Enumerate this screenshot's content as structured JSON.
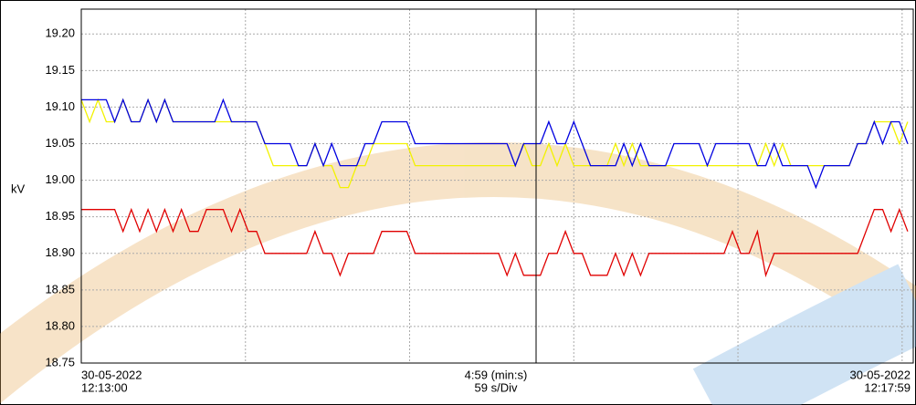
{
  "chart_data": {
    "type": "line",
    "y_label": "kV",
    "x_labels": {
      "start": [
        "30-05-2022",
        "12:13:00"
      ],
      "center": [
        "4:59 (min:s)",
        "59 s/Div"
      ],
      "end": [
        "30-05-2022",
        "12:17:59"
      ]
    },
    "xlim": [
      0,
      299
    ],
    "xticks": [
      0,
      59,
      118,
      177,
      236,
      295
    ],
    "ylim": [
      18.75,
      19.234
    ],
    "yticks": [
      18.75,
      {
        "value": 18.8,
        "label": "18.80"
      },
      18.85,
      {
        "value": 18.9,
        "label": "18.90"
      },
      18.95,
      {
        "value": 19.0,
        "label": "19.00"
      },
      19.05,
      {
        "value": 19.1,
        "label": "19.10"
      },
      19.15,
      {
        "value": 19.2,
        "label": "19.20"
      }
    ],
    "grid": true,
    "x": [
      0,
      3,
      6,
      9,
      12,
      15,
      18,
      21,
      24,
      27,
      30,
      33,
      36,
      39,
      42,
      45,
      48,
      51,
      54,
      57,
      60,
      63,
      66,
      69,
      72,
      75,
      78,
      81,
      84,
      87,
      90,
      93,
      96,
      99,
      102,
      105,
      108,
      111,
      114,
      117,
      120,
      123,
      126,
      129,
      132,
      135,
      138,
      141,
      144,
      147,
      150,
      153,
      156,
      159,
      162,
      165,
      168,
      171,
      174,
      177,
      180,
      183,
      186,
      189,
      192,
      195,
      198,
      201,
      204,
      207,
      210,
      213,
      216,
      219,
      222,
      225,
      228,
      231,
      234,
      237,
      240,
      243,
      246,
      249,
      252,
      255,
      258,
      261,
      264,
      267,
      270,
      273,
      276,
      279,
      282,
      285,
      288,
      291,
      294,
      297
    ],
    "series": [
      {
        "color": "#f2f200",
        "values": [
          19.11,
          19.08,
          19.11,
          19.08,
          19.08,
          19.11,
          19.08,
          19.08,
          19.11,
          19.08,
          19.11,
          19.08,
          19.08,
          19.08,
          19.08,
          19.08,
          19.08,
          19.08,
          19.08,
          19.08,
          19.08,
          19.08,
          19.05,
          19.02,
          19.02,
          19.02,
          19.02,
          19.02,
          19.05,
          19.02,
          19.02,
          18.99,
          18.99,
          19.02,
          19.02,
          19.05,
          19.05,
          19.05,
          19.05,
          19.05,
          19.02,
          19.02,
          19.02,
          19.02,
          19.02,
          19.02,
          19.02,
          19.02,
          19.02,
          19.02,
          19.02,
          19.02,
          19.02,
          19.05,
          19.02,
          19.02,
          19.05,
          19.02,
          19.05,
          19.02,
          19.02,
          19.02,
          19.02,
          19.02,
          19.05,
          19.02,
          19.05,
          19.02,
          19.02,
          19.02,
          19.02,
          19.02,
          19.02,
          19.02,
          19.02,
          19.02,
          19.02,
          19.02,
          19.02,
          19.02,
          19.02,
          19.02,
          19.05,
          19.02,
          19.05,
          19.02,
          19.02,
          19.02,
          19.02,
          19.02,
          19.02,
          19.02,
          19.02,
          19.05,
          19.05,
          19.08,
          19.08,
          19.08,
          19.05,
          19.08
        ]
      },
      {
        "color": "#0000e0",
        "values": [
          19.11,
          19.11,
          19.11,
          19.11,
          19.08,
          19.11,
          19.08,
          19.08,
          19.11,
          19.08,
          19.11,
          19.08,
          19.08,
          19.08,
          19.08,
          19.08,
          19.08,
          19.11,
          19.08,
          19.08,
          19.08,
          19.08,
          19.05,
          19.05,
          19.05,
          19.05,
          19.02,
          19.02,
          19.05,
          19.02,
          19.05,
          19.02,
          19.02,
          19.02,
          19.05,
          19.05,
          19.08,
          19.08,
          19.08,
          19.08,
          19.05,
          19.05,
          19.05,
          19.05,
          19.05,
          19.05,
          19.05,
          19.05,
          19.05,
          19.05,
          19.05,
          19.05,
          19.02,
          19.05,
          19.05,
          19.05,
          19.08,
          19.05,
          19.05,
          19.08,
          19.05,
          19.02,
          19.02,
          19.02,
          19.02,
          19.05,
          19.02,
          19.05,
          19.02,
          19.02,
          19.02,
          19.05,
          19.05,
          19.05,
          19.05,
          19.02,
          19.05,
          19.05,
          19.05,
          19.05,
          19.05,
          19.02,
          19.02,
          19.05,
          19.02,
          19.02,
          19.02,
          19.02,
          18.99,
          19.02,
          19.02,
          19.02,
          19.02,
          19.05,
          19.05,
          19.08,
          19.05,
          19.08,
          19.08,
          19.05
        ]
      },
      {
        "color": "#e00000",
        "values": [
          18.96,
          18.96,
          18.96,
          18.96,
          18.96,
          18.93,
          18.96,
          18.93,
          18.96,
          18.93,
          18.96,
          18.93,
          18.96,
          18.93,
          18.93,
          18.96,
          18.96,
          18.96,
          18.93,
          18.96,
          18.93,
          18.93,
          18.9,
          18.9,
          18.9,
          18.9,
          18.9,
          18.9,
          18.93,
          18.9,
          18.9,
          18.87,
          18.9,
          18.9,
          18.9,
          18.9,
          18.93,
          18.93,
          18.93,
          18.93,
          18.9,
          18.9,
          18.9,
          18.9,
          18.9,
          18.9,
          18.9,
          18.9,
          18.9,
          18.9,
          18.9,
          18.87,
          18.9,
          18.87,
          18.87,
          18.87,
          18.9,
          18.9,
          18.93,
          18.9,
          18.9,
          18.87,
          18.87,
          18.87,
          18.9,
          18.87,
          18.9,
          18.87,
          18.9,
          18.9,
          18.9,
          18.9,
          18.9,
          18.9,
          18.9,
          18.9,
          18.9,
          18.9,
          18.93,
          18.9,
          18.9,
          18.93,
          18.87,
          18.9,
          18.9,
          18.9,
          18.9,
          18.9,
          18.9,
          18.9,
          18.9,
          18.9,
          18.9,
          18.9,
          18.93,
          18.96,
          18.96,
          18.93,
          18.96,
          18.93
        ]
      }
    ]
  }
}
